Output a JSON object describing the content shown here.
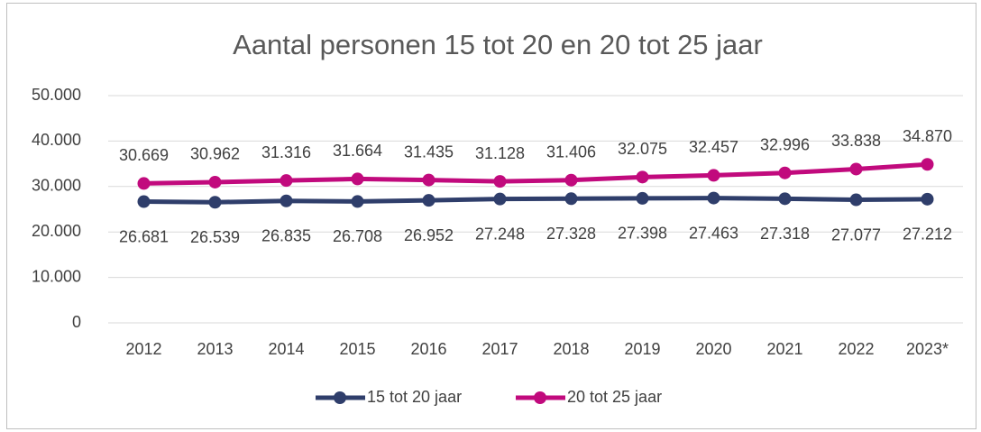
{
  "chart_data": {
    "type": "line",
    "title": "Aantal personen 15 tot 20 en 20 tot 25 jaar",
    "categories": [
      "2012",
      "2013",
      "2014",
      "2015",
      "2016",
      "2017",
      "2018",
      "2019",
      "2020",
      "2021",
      "2022",
      "2023*"
    ],
    "series": [
      {
        "name": "15 tot 20 jaar",
        "color": "#2f3e6b",
        "values": [
          26681,
          26539,
          26835,
          26708,
          26952,
          27248,
          27328,
          27398,
          27463,
          27318,
          27077,
          27212
        ],
        "value_labels": [
          "26.681",
          "26.539",
          "26.835",
          "26.708",
          "26.952",
          "27.248",
          "27.328",
          "27.398",
          "27.463",
          "27.318",
          "27.077",
          "27.212"
        ]
      },
      {
        "name": "20 tot 25 jaar",
        "color": "#c10a7d",
        "values": [
          30669,
          30962,
          31316,
          31664,
          31435,
          31128,
          31406,
          32075,
          32457,
          32996,
          33838,
          34870
        ],
        "value_labels": [
          "30.669",
          "30.962",
          "31.316",
          "31.664",
          "31.435",
          "31.128",
          "31.406",
          "32.075",
          "32.457",
          "32.996",
          "33.838",
          "34.870"
        ]
      }
    ],
    "ylim": [
      0,
      50000
    ],
    "yticks": [
      0,
      {
        "value": 10000,
        "label": "10.000"
      },
      {
        "value": 20000,
        "label": "20.000"
      },
      {
        "value": 30000,
        "label": "30.000"
      },
      {
        "value": 40000,
        "label": "40.000"
      },
      {
        "value": 50000,
        "label": "50.000"
      }
    ],
    "grid": true,
    "legend": "bottom"
  }
}
